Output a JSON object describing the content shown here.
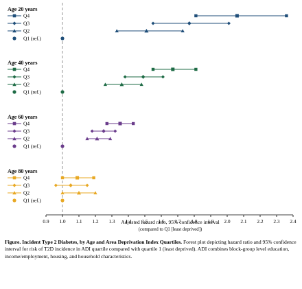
{
  "chart_data": {
    "type": "forest",
    "xlabel": "Adjusted hazard ratio, 95% confidence interval",
    "xlabel_sub": "(compared to Q1 [least deprived])",
    "xlim": [
      0.9,
      2.4
    ],
    "xticks": [
      0.9,
      1.0,
      1.1,
      1.2,
      1.3,
      1.4,
      1.5,
      1.6,
      1.7,
      1.8,
      1.9,
      2.0,
      2.1,
      2.2,
      2.3,
      2.4
    ],
    "xtick_labels": [
      "0.9",
      "1.0",
      "1.1",
      "1.2",
      "1.3",
      "1.4",
      "1.5",
      "1.6",
      "1.7",
      "1.8",
      "1.9",
      "2.0",
      "2.1",
      "2.2",
      "2.3",
      "2.4"
    ],
    "reference_line": 1.0,
    "groups": [
      {
        "label": "Age 20 years",
        "color": "#1f4e79",
        "rows": [
          {
            "label": "Q4",
            "marker": "square",
            "hr": 2.06,
            "lo": 1.81,
            "hi": 2.36
          },
          {
            "label": "Q3",
            "marker": "diamond",
            "hr": 1.77,
            "lo": 1.55,
            "hi": 2.01
          },
          {
            "label": "Q2",
            "marker": "triangle",
            "hr": 1.51,
            "lo": 1.33,
            "hi": 1.73
          },
          {
            "label": "Q1 (ref.)",
            "marker": "circle",
            "hr": 1.0,
            "lo": null,
            "hi": null
          }
        ]
      },
      {
        "label": "Age 40 years",
        "color": "#1e6b45",
        "rows": [
          {
            "label": "Q4",
            "marker": "square",
            "hr": 1.67,
            "lo": 1.55,
            "hi": 1.81
          },
          {
            "label": "Q3",
            "marker": "diamond",
            "hr": 1.49,
            "lo": 1.38,
            "hi": 1.61
          },
          {
            "label": "Q2",
            "marker": "triangle",
            "hr": 1.36,
            "lo": 1.26,
            "hi": 1.48
          },
          {
            "label": "Q1 (ref.)",
            "marker": "circle",
            "hr": 1.0,
            "lo": null,
            "hi": null
          }
        ]
      },
      {
        "label": "Age 60 years",
        "color": "#6b3d8c",
        "rows": [
          {
            "label": "Q4",
            "marker": "square",
            "hr": 1.35,
            "lo": 1.27,
            "hi": 1.43
          },
          {
            "label": "Q3",
            "marker": "diamond",
            "hr": 1.25,
            "lo": 1.18,
            "hi": 1.32
          },
          {
            "label": "Q2",
            "marker": "triangle",
            "hr": 1.21,
            "lo": 1.15,
            "hi": 1.29
          },
          {
            "label": "Q1 (ref.)",
            "marker": "circle",
            "hr": 1.0,
            "lo": null,
            "hi": null
          }
        ]
      },
      {
        "label": "Age 80 years",
        "color": "#e8a823",
        "rows": [
          {
            "label": "Q4",
            "marker": "square",
            "hr": 1.09,
            "lo": 1.0,
            "hi": 1.19
          },
          {
            "label": "Q3",
            "marker": "diamond",
            "hr": 1.05,
            "lo": 0.96,
            "hi": 1.15
          },
          {
            "label": "Q2",
            "marker": "triangle",
            "hr": 1.1,
            "lo": 1.0,
            "hi": 1.2
          },
          {
            "label": "Q1 (ref.)",
            "marker": "circle",
            "hr": 1.0,
            "lo": null,
            "hi": null
          }
        ]
      }
    ],
    "grid": false,
    "legend": "none"
  },
  "caption": {
    "title": "Figure. Incident Type 2 Diabetes, by Age and Area Deprivation Index Quartiles.",
    "body": " Forest plot depicting hazard ratio and 95% confidence interval for risk of T2D incidence in ADI quartile compared with quartile 1 (least deprived). ADI combines block-group level education, income/employment, housing, and household characteristics."
  }
}
